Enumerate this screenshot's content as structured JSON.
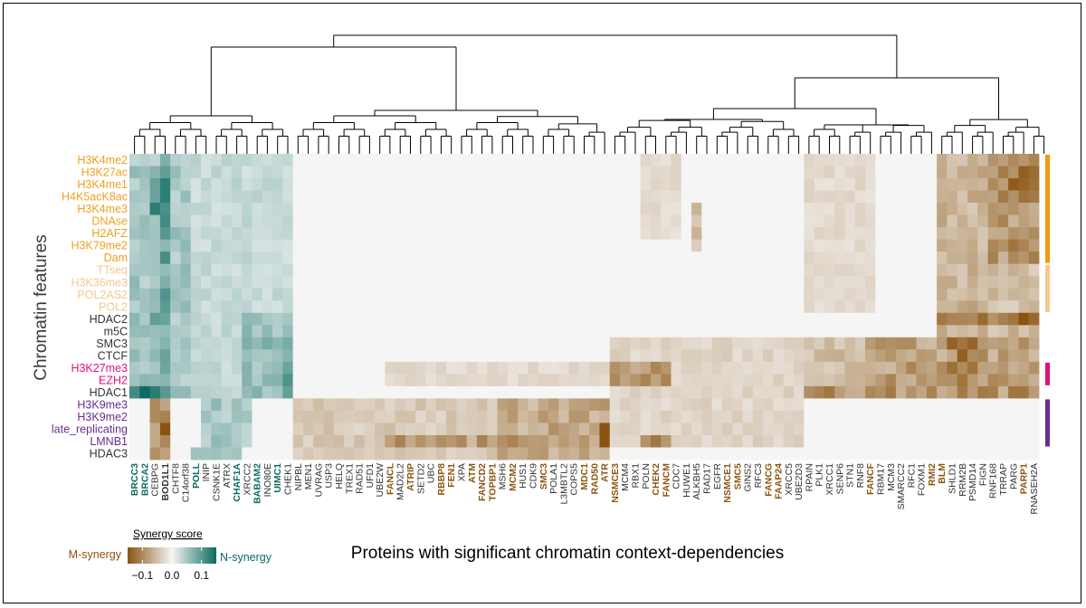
{
  "chart_data": {
    "type": "heatmap",
    "xlabel": "Proteins with significant chromatin context-dependencies",
    "ylabel": "Chromatin features",
    "legend": {
      "title": "Synergy score",
      "left_label": "M-synergy",
      "right_label": "N-synergy",
      "ticks": [
        "−0.1",
        "0.0",
        "0.1"
      ],
      "range": [
        -0.15,
        0.15
      ],
      "placement": "bottom-left"
    },
    "colors": {
      "m_synergy": "#8a5410",
      "n_synergy": "#0b6b60",
      "neutral": "#f5f5f5"
    },
    "rows": [
      {
        "name": "H3K4me2",
        "color": "#f0a020"
      },
      {
        "name": "H3K27ac",
        "color": "#f0a020"
      },
      {
        "name": "H3K4me1",
        "color": "#f0a020"
      },
      {
        "name": "H4K5acK8ac",
        "color": "#f0a020"
      },
      {
        "name": "H3K4me3",
        "color": "#f0a020"
      },
      {
        "name": "DNAse",
        "color": "#f0a020"
      },
      {
        "name": "H2AFZ",
        "color": "#f0a020"
      },
      {
        "name": "H3K79me2",
        "color": "#f0a020"
      },
      {
        "name": "Dam",
        "color": "#f0a020"
      },
      {
        "name": "TTseq",
        "color": "#f5c890"
      },
      {
        "name": "H3K36me3",
        "color": "#f5c890"
      },
      {
        "name": "POL2AS2",
        "color": "#f5c890"
      },
      {
        "name": "POL2",
        "color": "#f5c890"
      },
      {
        "name": "HDAC2",
        "color": "#333333"
      },
      {
        "name": "m5C",
        "color": "#333333"
      },
      {
        "name": "SMC3",
        "color": "#333333"
      },
      {
        "name": "CTCF",
        "color": "#333333"
      },
      {
        "name": "H3K27me3",
        "color": "#e0107a"
      },
      {
        "name": "EZH2",
        "color": "#e0107a"
      },
      {
        "name": "HDAC1",
        "color": "#333333"
      },
      {
        "name": "H3K9me3",
        "color": "#6a2c8c"
      },
      {
        "name": "H3K9me2",
        "color": "#6a2c8c"
      },
      {
        "name": "late_replicating",
        "color": "#6a2c8c"
      },
      {
        "name": "LMNB1",
        "color": "#6a2c8c"
      },
      {
        "name": "HDAC3",
        "color": "#333333"
      }
    ],
    "row_groups": [
      {
        "from": 0,
        "to": 8,
        "color": "#f09a10"
      },
      {
        "from": 9,
        "to": 12,
        "color": "#f5c890"
      },
      {
        "from": 17,
        "to": 18,
        "color": "#e0107a"
      },
      {
        "from": 20,
        "to": 23,
        "color": "#6a2c8c"
      }
    ],
    "columns": [
      {
        "name": "BRCC3",
        "style": "n"
      },
      {
        "name": "BRCA2",
        "style": "n"
      },
      {
        "name": "CEBPG",
        "style": "plain"
      },
      {
        "name": "BOD1L1",
        "style": "bold"
      },
      {
        "name": "CHTF8",
        "style": "plain"
      },
      {
        "name": "C14orf38",
        "style": "plain"
      },
      {
        "name": "POLL",
        "style": "n"
      },
      {
        "name": "INIP",
        "style": "plain"
      },
      {
        "name": "CSNK1E",
        "style": "plain"
      },
      {
        "name": "ATRX",
        "style": "plain"
      },
      {
        "name": "CHAF1A",
        "style": "n"
      },
      {
        "name": "XRCC2",
        "style": "plain"
      },
      {
        "name": "BABAM2",
        "style": "n"
      },
      {
        "name": "INO80E",
        "style": "plain"
      },
      {
        "name": "UIMC1",
        "style": "n"
      },
      {
        "name": "CHEK1",
        "style": "plain"
      },
      {
        "name": "NIPBL",
        "style": "plain"
      },
      {
        "name": "MEN1",
        "style": "plain"
      },
      {
        "name": "UVRAG",
        "style": "plain"
      },
      {
        "name": "USP3",
        "style": "plain"
      },
      {
        "name": "HELQ",
        "style": "plain"
      },
      {
        "name": "TREX1",
        "style": "plain"
      },
      {
        "name": "RAD51",
        "style": "plain"
      },
      {
        "name": "UFD1",
        "style": "plain"
      },
      {
        "name": "UBE2W",
        "style": "plain"
      },
      {
        "name": "FANCL",
        "style": "m"
      },
      {
        "name": "MAD2L2",
        "style": "plain"
      },
      {
        "name": "ATRIP",
        "style": "m"
      },
      {
        "name": "SETD2",
        "style": "plain"
      },
      {
        "name": "UBC",
        "style": "plain"
      },
      {
        "name": "RBBP8",
        "style": "m"
      },
      {
        "name": "FEN1",
        "style": "m"
      },
      {
        "name": "XPA",
        "style": "plain"
      },
      {
        "name": "ATM",
        "style": "m"
      },
      {
        "name": "FANCD2",
        "style": "m"
      },
      {
        "name": "TOPBP1",
        "style": "m"
      },
      {
        "name": "MSH6",
        "style": "plain"
      },
      {
        "name": "MCM2",
        "style": "m"
      },
      {
        "name": "HUS1",
        "style": "plain"
      },
      {
        "name": "CDK9",
        "style": "plain"
      },
      {
        "name": "SMC3",
        "style": "m"
      },
      {
        "name": "POLA1",
        "style": "plain"
      },
      {
        "name": "L3MBTL2",
        "style": "plain"
      },
      {
        "name": "COPS5",
        "style": "plain"
      },
      {
        "name": "MDC1",
        "style": "m"
      },
      {
        "name": "RAD50",
        "style": "m"
      },
      {
        "name": "ATR",
        "style": "m"
      },
      {
        "name": "NSMCE3",
        "style": "m"
      },
      {
        "name": "MCM4",
        "style": "plain"
      },
      {
        "name": "RBX1",
        "style": "plain"
      },
      {
        "name": "POLN",
        "style": "plain"
      },
      {
        "name": "CHEK2",
        "style": "m"
      },
      {
        "name": "FANCM",
        "style": "m"
      },
      {
        "name": "CDC7",
        "style": "plain"
      },
      {
        "name": "HUWE1",
        "style": "plain"
      },
      {
        "name": "ALKBH5",
        "style": "plain"
      },
      {
        "name": "RAD17",
        "style": "plain"
      },
      {
        "name": "EGFR",
        "style": "plain"
      },
      {
        "name": "NSMCE1",
        "style": "m"
      },
      {
        "name": "SMC5",
        "style": "m"
      },
      {
        "name": "GINS2",
        "style": "plain"
      },
      {
        "name": "RFC3",
        "style": "plain"
      },
      {
        "name": "FANCG",
        "style": "m"
      },
      {
        "name": "FAAP24",
        "style": "m"
      },
      {
        "name": "XRCC5",
        "style": "plain"
      },
      {
        "name": "UBE2D3",
        "style": "plain"
      },
      {
        "name": "RPAIN",
        "style": "plain"
      },
      {
        "name": "PLK1",
        "style": "plain"
      },
      {
        "name": "XRCC1",
        "style": "plain"
      },
      {
        "name": "SENP6",
        "style": "plain"
      },
      {
        "name": "STN1",
        "style": "plain"
      },
      {
        "name": "RNF8",
        "style": "plain"
      },
      {
        "name": "FANCF",
        "style": "m"
      },
      {
        "name": "RBM17",
        "style": "plain"
      },
      {
        "name": "MCM3",
        "style": "plain"
      },
      {
        "name": "SMARCC2",
        "style": "plain"
      },
      {
        "name": "RFC1",
        "style": "plain"
      },
      {
        "name": "FOXM1",
        "style": "plain"
      },
      {
        "name": "RMI2",
        "style": "m"
      },
      {
        "name": "BLM",
        "style": "m"
      },
      {
        "name": "SHLD1",
        "style": "plain"
      },
      {
        "name": "RRM2B",
        "style": "plain"
      },
      {
        "name": "PSMD14",
        "style": "plain"
      },
      {
        "name": "FIGN",
        "style": "plain"
      },
      {
        "name": "RNF168",
        "style": "plain"
      },
      {
        "name": "TRRAP",
        "style": "plain"
      },
      {
        "name": "PARG",
        "style": "plain"
      },
      {
        "name": "PARP1",
        "style": "m"
      },
      {
        "name": "RNASEH2A",
        "style": "plain"
      }
    ],
    "label_colors": {
      "n": "#0b6b60",
      "m": "#8a5410",
      "bold": "#333333",
      "plain": "#333333"
    },
    "regions": [
      {
        "cols": [
          0,
          15
        ],
        "rows": [
          0,
          19
        ],
        "value": 0.03
      },
      {
        "cols": [
          0,
          5
        ],
        "rows": [
          0,
          19
        ],
        "value": 0.05
      },
      {
        "cols": [
          3,
          3
        ],
        "rows": [
          0,
          19
        ],
        "value": 0.09
      },
      {
        "cols": [
          2,
          3
        ],
        "rows": [
          1,
          4
        ],
        "value": 0.1
      },
      {
        "cols": [
          3,
          3
        ],
        "rows": [
          2,
          2
        ],
        "value": 0.15
      },
      {
        "cols": [
          3,
          3
        ],
        "rows": [
          13,
          13
        ],
        "value": 0.14
      },
      {
        "cols": [
          2,
          3
        ],
        "rows": [
          13,
          13
        ],
        "value": 0.12
      },
      {
        "cols": [
          0,
          3
        ],
        "rows": [
          19,
          19
        ],
        "value": 0.13
      },
      {
        "cols": [
          3,
          3
        ],
        "rows": [
          19,
          19
        ],
        "value": 0.15
      },
      {
        "cols": [
          11,
          15
        ],
        "rows": [
          13,
          19
        ],
        "value": 0.06
      },
      {
        "cols": [
          14,
          15
        ],
        "rows": [
          17,
          19
        ],
        "value": 0.08
      },
      {
        "cols": [
          7,
          11
        ],
        "rows": [
          20,
          23
        ],
        "value": 0.05
      },
      {
        "cols": [
          2,
          3
        ],
        "rows": [
          20,
          24
        ],
        "value": -0.1
      },
      {
        "cols": [
          3,
          3
        ],
        "rows": [
          22,
          23
        ],
        "value": -0.13
      },
      {
        "cols": [
          6,
          10
        ],
        "rows": [
          24,
          24
        ],
        "value": 0.05
      },
      {
        "cols": [
          16,
          46
        ],
        "rows": [
          20,
          24
        ],
        "value": -0.04
      },
      {
        "cols": [
          36,
          46
        ],
        "rows": [
          20,
          24
        ],
        "value": -0.07
      },
      {
        "cols": [
          46,
          46
        ],
        "rows": [
          22,
          23
        ],
        "value": -0.13
      },
      {
        "cols": [
          25,
          45
        ],
        "rows": [
          23,
          23
        ],
        "value": -0.08
      },
      {
        "cols": [
          47,
          65
        ],
        "rows": [
          20,
          23
        ],
        "value": -0.03
      },
      {
        "cols": [
          47,
          65
        ],
        "rows": [
          15,
          19
        ],
        "value": -0.03
      },
      {
        "cols": [
          47,
          52
        ],
        "rows": [
          17,
          18
        ],
        "value": -0.08
      },
      {
        "cols": [
          50,
          52
        ],
        "rows": [
          23,
          23
        ],
        "value": -0.1
      },
      {
        "cols": [
          25,
          46
        ],
        "rows": [
          17,
          18
        ],
        "value": -0.025
      },
      {
        "cols": [
          66,
          88
        ],
        "rows": [
          15,
          19
        ],
        "value": -0.05
      },
      {
        "cols": [
          72,
          88
        ],
        "rows": [
          15,
          19
        ],
        "value": -0.08
      },
      {
        "cols": [
          80,
          82
        ],
        "rows": [
          15,
          19
        ],
        "value": -0.11
      },
      {
        "cols": [
          66,
          88
        ],
        "rows": [
          19,
          19
        ],
        "value": -0.09
      },
      {
        "cols": [
          66,
          72
        ],
        "rows": [
          0,
          12
        ],
        "value": -0.025
      },
      {
        "cols": [
          79,
          88
        ],
        "rows": [
          0,
          14
        ],
        "value": -0.06
      },
      {
        "cols": [
          84,
          88
        ],
        "rows": [
          0,
          8
        ],
        "value": -0.09
      },
      {
        "cols": [
          86,
          88
        ],
        "rows": [
          0,
          3
        ],
        "value": -0.12
      },
      {
        "cols": [
          79,
          88
        ],
        "rows": [
          13,
          13
        ],
        "value": -0.1
      },
      {
        "cols": [
          87,
          87
        ],
        "rows": [
          13,
          13
        ],
        "value": -0.14
      },
      {
        "cols": [
          84,
          88
        ],
        "rows": [
          9,
          12
        ],
        "value": -0.05
      },
      {
        "cols": [
          50,
          53
        ],
        "rows": [
          0,
          6
        ],
        "value": -0.025
      },
      {
        "cols": [
          55,
          55
        ],
        "rows": [
          4,
          7
        ],
        "value": -0.05
      },
      {
        "cols": [
          89,
          89
        ],
        "rows": [
          0,
          24
        ],
        "value": 0.0
      }
    ]
  }
}
